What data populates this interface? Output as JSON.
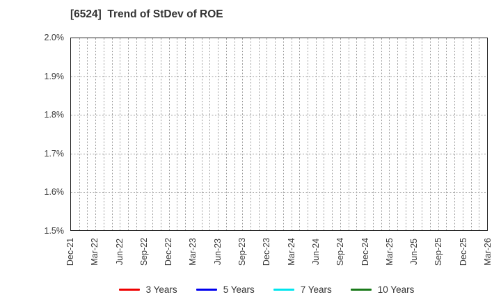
{
  "chart": {
    "title": "[6524]  Trend of StDev of ROE"
  },
  "chart_data": {
    "type": "line",
    "title": "[6524]  Trend of StDev of ROE",
    "x_tick_labels": [
      "Dec-21",
      "Mar-22",
      "Jun-22",
      "Sep-22",
      "Dec-22",
      "Mar-23",
      "Jun-23",
      "Sep-23",
      "Dec-23",
      "Mar-24",
      "Jun-24",
      "Sep-24",
      "Dec-24",
      "Mar-25",
      "Jun-25",
      "Sep-25",
      "Dec-25",
      "Mar-26"
    ],
    "y_tick_labels": [
      "2.0%",
      "1.9%",
      "1.8%",
      "1.7%",
      "1.6%",
      "1.5%"
    ],
    "ylim": [
      "1.5%",
      "2.0%"
    ],
    "x_axis_unit": "month",
    "x_months_total": 51,
    "x_label_every_months": 3,
    "grid": "dotted",
    "grid_vertical_every": "month",
    "legend_position": "bottom",
    "plot_is_empty": true,
    "series": [
      {
        "name": "3 Years",
        "color": "#ee0000",
        "values": []
      },
      {
        "name": "5 Years",
        "color": "#0000ee",
        "values": []
      },
      {
        "name": "7 Years",
        "color": "#00e5ee",
        "values": []
      },
      {
        "name": "10 Years",
        "color": "#1a7a1a",
        "values": []
      }
    ]
  },
  "layout_colors": {
    "background": "#ffffff",
    "axis_border": "#1f1f1f",
    "gridline": "#9c9c9c",
    "text": "#333333"
  }
}
